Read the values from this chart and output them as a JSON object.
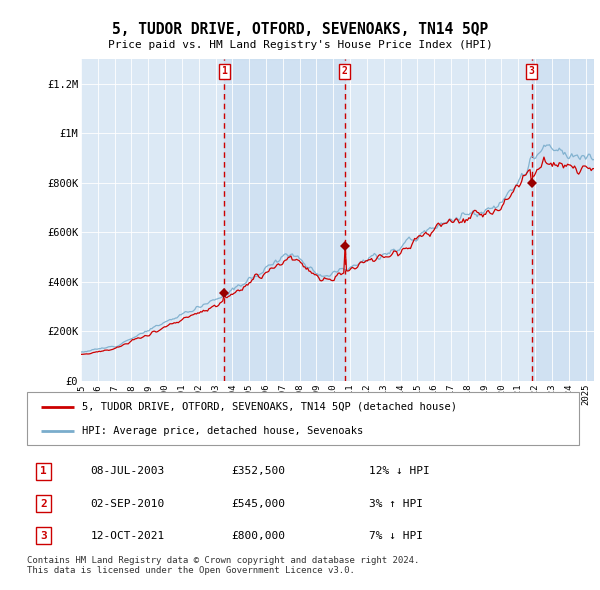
{
  "title": "5, TUDOR DRIVE, OTFORD, SEVENOAKS, TN14 5QP",
  "subtitle": "Price paid vs. HM Land Registry's House Price Index (HPI)",
  "ylim": [
    0,
    1300000
  ],
  "xlim_start": 1995.0,
  "xlim_end": 2025.5,
  "background_color": "#ffffff",
  "plot_bg_color": "#dce9f5",
  "purchase_dates": [
    2003.52,
    2010.67,
    2021.79
  ],
  "purchase_prices": [
    352500,
    545000,
    800000
  ],
  "purchase_labels": [
    "1",
    "2",
    "3"
  ],
  "legend_red_label": "5, TUDOR DRIVE, OTFORD, SEVENOAKS, TN14 5QP (detached house)",
  "legend_blue_label": "HPI: Average price, detached house, Sevenoaks",
  "table_data": [
    [
      "1",
      "08-JUL-2003",
      "£352,500",
      "12% ↓ HPI"
    ],
    [
      "2",
      "02-SEP-2010",
      "£545,000",
      "3% ↑ HPI"
    ],
    [
      "3",
      "12-OCT-2021",
      "£800,000",
      "7% ↓ HPI"
    ]
  ],
  "footer": "Contains HM Land Registry data © Crown copyright and database right 2024.\nThis data is licensed under the Open Government Licence v3.0.",
  "ytick_labels": [
    "£0",
    "£200K",
    "£400K",
    "£600K",
    "£800K",
    "£1M",
    "£1.2M"
  ],
  "ytick_values": [
    0,
    200000,
    400000,
    600000,
    800000,
    1000000,
    1200000
  ],
  "red_line_color": "#cc0000",
  "blue_line_color": "#7aadcc",
  "vline_color": "#cc0000",
  "shade_color": "#c8ddf0",
  "marker_color": "#990000"
}
